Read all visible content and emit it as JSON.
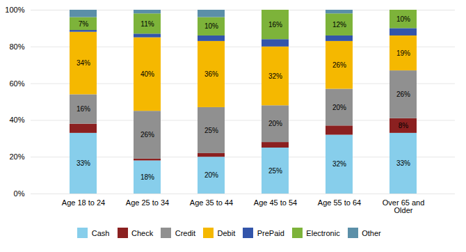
{
  "chart_data": {
    "type": "bar",
    "stacked": true,
    "categories": [
      "Age 18 to 24",
      "Age 25 to 34",
      "Age 35 to 44",
      "Age 45 to 54",
      "Age 55 to 64",
      "Over 65 and\nOlder"
    ],
    "series": [
      {
        "name": "Cash",
        "color": "#87CEEB",
        "values": [
          33,
          18,
          20,
          25,
          32,
          33
        ],
        "value_labels": [
          "33%",
          "18%",
          "20%",
          "25%",
          "32%",
          "33%"
        ]
      },
      {
        "name": "Check",
        "color": "#8B2020",
        "values": [
          5,
          1,
          2,
          3,
          5,
          8
        ],
        "value_labels": [
          null,
          null,
          null,
          null,
          null,
          "8%"
        ]
      },
      {
        "name": "Credit",
        "color": "#909090",
        "values": [
          16,
          26,
          25,
          20,
          20,
          26
        ],
        "value_labels": [
          "16%",
          "26%",
          "25%",
          "20%",
          "20%",
          "26%"
        ]
      },
      {
        "name": "Debit",
        "color": "#F5B800",
        "values": [
          34,
          40,
          36,
          32,
          26,
          19
        ],
        "value_labels": [
          "34%",
          "40%",
          "36%",
          "32%",
          "26%",
          "19%"
        ]
      },
      {
        "name": "PrePaid",
        "color": "#3355AA",
        "values": [
          1,
          2,
          3,
          4,
          3,
          4
        ]
      },
      {
        "name": "Electronic",
        "color": "#7DB33A",
        "values": [
          7,
          11,
          10,
          16,
          12,
          10
        ],
        "value_labels": [
          "7%",
          "11%",
          "10%",
          "16%",
          "12%",
          "10%"
        ]
      },
      {
        "name": "Other",
        "color": "#5B8FA8",
        "values": [
          4,
          2,
          4,
          0,
          2,
          0
        ]
      }
    ],
    "ylim": [
      0,
      100
    ],
    "yticks": [
      {
        "value": 0,
        "label": "0%"
      },
      {
        "value": 20,
        "label": "20%"
      },
      {
        "value": 40,
        "label": "40%"
      },
      {
        "value": 60,
        "label": "60%"
      },
      {
        "value": 80,
        "label": "80%"
      },
      {
        "value": 100,
        "label": "100%"
      }
    ],
    "grid": true,
    "legend": "bottom",
    "data_labels": true
  }
}
